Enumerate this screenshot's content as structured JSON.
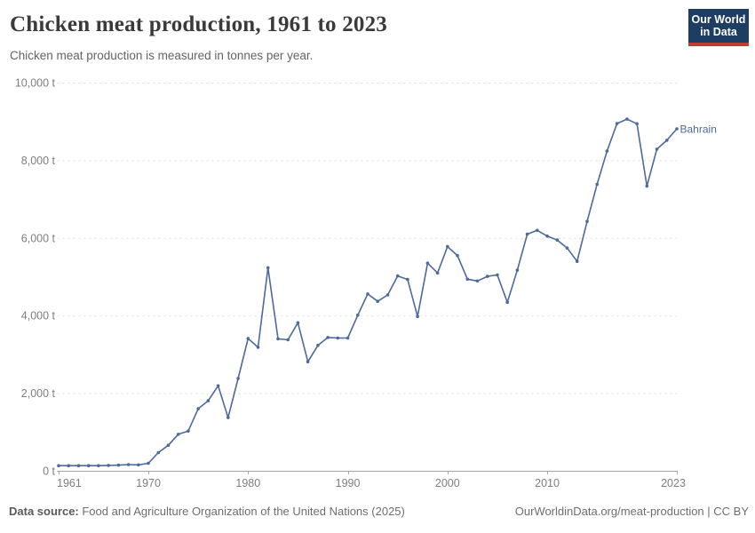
{
  "header": {
    "title": "Chicken meat production, 1961 to 2023",
    "subtitle": "Chicken meat production is measured in tonnes per year.",
    "logo": {
      "line1": "Our World",
      "line2": "in Data",
      "bg_color": "#1d3d63",
      "accent_color": "#c13c33"
    }
  },
  "chart_data": {
    "type": "line",
    "title": "Chicken meat production, 1961 to 2023",
    "ylabel": "",
    "xlabel": "",
    "unit_suffix": " t",
    "xlim": [
      1961,
      2023
    ],
    "ylim": [
      0,
      10000
    ],
    "x_ticks": [
      1961,
      1970,
      1980,
      1990,
      2000,
      2010,
      2023
    ],
    "y_ticks": [
      0,
      2000,
      4000,
      6000,
      8000,
      10000
    ],
    "grid": "horizontal-dashed",
    "legend_position": "end-of-line-label",
    "line_color": "#4c6a9c",
    "grid_color": "#dcdcdc",
    "axis_color": "#a5a5a5",
    "series": [
      {
        "name": "Bahrain",
        "x": [
          1961,
          1962,
          1963,
          1964,
          1965,
          1966,
          1967,
          1968,
          1969,
          1970,
          1971,
          1972,
          1973,
          1974,
          1975,
          1976,
          1977,
          1978,
          1979,
          1980,
          1981,
          1982,
          1983,
          1984,
          1985,
          1986,
          1987,
          1988,
          1989,
          1990,
          1991,
          1992,
          1993,
          1994,
          1995,
          1996,
          1997,
          1998,
          1999,
          2000,
          2001,
          2002,
          2003,
          2004,
          2005,
          2006,
          2007,
          2008,
          2009,
          2010,
          2011,
          2012,
          2013,
          2014,
          2015,
          2016,
          2017,
          2018,
          2019,
          2020,
          2021,
          2022,
          2023
        ],
        "values": [
          132,
          132,
          132,
          132,
          132,
          139,
          146,
          160,
          154,
          195,
          470,
          660,
          940,
          1025,
          1600,
          1805,
          2190,
          1370,
          2380,
          3410,
          3180,
          5230,
          3400,
          3375,
          3815,
          2810,
          3230,
          3435,
          3420,
          3420,
          4010,
          4555,
          4365,
          4530,
          5020,
          4930,
          3975,
          5350,
          5095,
          5775,
          5545,
          4935,
          4890,
          5010,
          5045,
          4340,
          5170,
          6095,
          6195,
          6045,
          5945,
          5740,
          5395,
          6425,
          7380,
          8235,
          8945,
          9060,
          8940,
          7335,
          8285,
          8515,
          8810
        ]
      }
    ]
  },
  "footer": {
    "source_label": "Data source:",
    "source_text": " Food and Agriculture Organization of the United Nations (2025)",
    "link_text": "OurWorldinData.org/meat-production | CC BY"
  }
}
